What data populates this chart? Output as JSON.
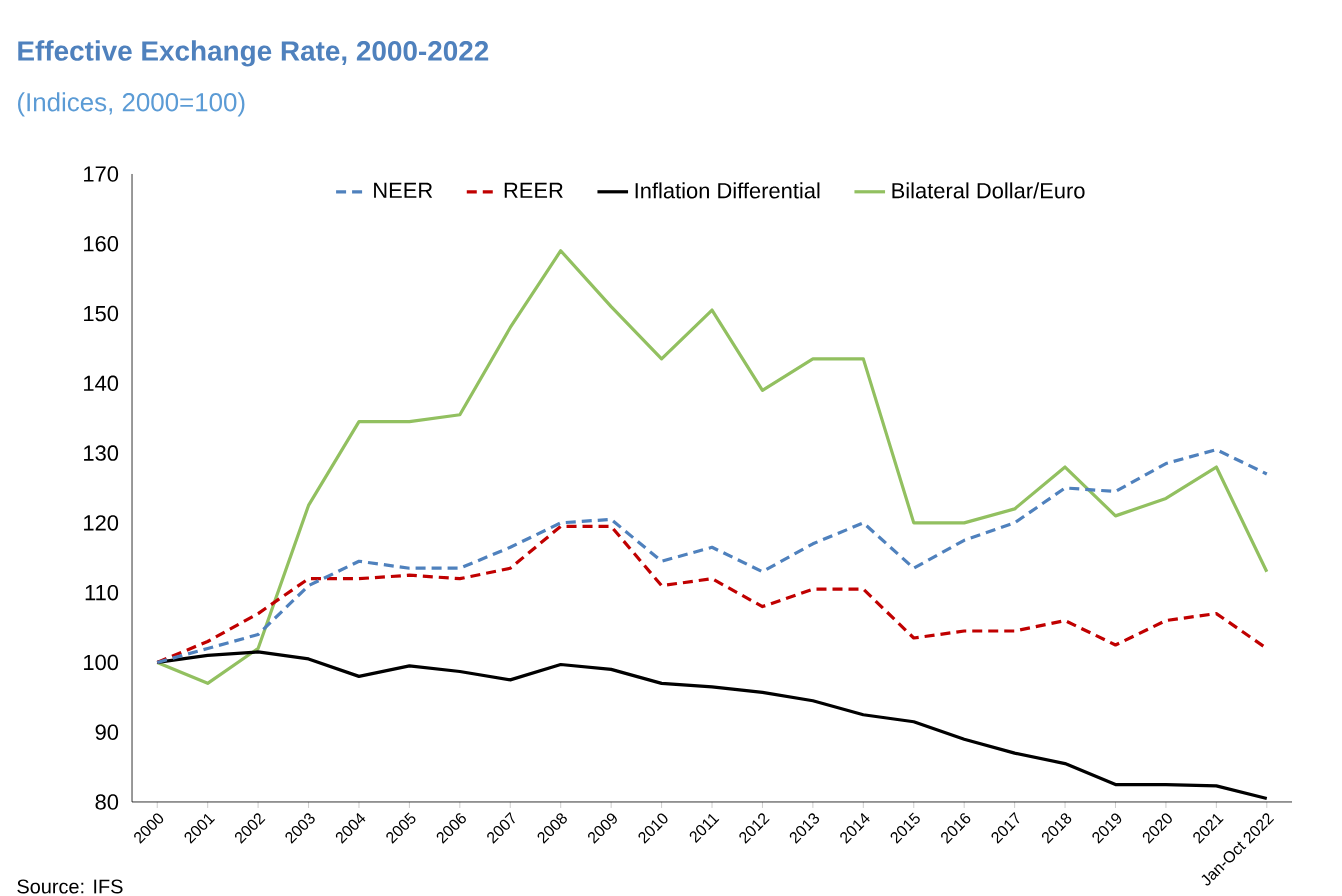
{
  "chart_data": {
    "type": "line",
    "title": "Effective Exchange Rate, 2000-2022",
    "subtitle": "(Indices, 2000=100)",
    "categories": [
      "2000",
      "2001",
      "2002",
      "2003",
      "2004",
      "2005",
      "2006",
      "2007",
      "2008",
      "2009",
      "2010",
      "2011",
      "2012",
      "2013",
      "2014",
      "2015",
      "2016",
      "2017",
      "2018",
      "2019",
      "2020",
      "2021",
      "Jan-Oct 2022"
    ],
    "series": [
      {
        "name": "NEER",
        "color": "#4f81bd",
        "line_style": "dashed",
        "values": [
          100,
          102,
          104,
          111,
          114.5,
          113.5,
          113.5,
          116.5,
          120,
          120.5,
          114.5,
          116.5,
          113,
          117,
          120,
          113.5,
          117.5,
          120,
          125,
          124.5,
          128.5,
          130.5,
          127
        ]
      },
      {
        "name": "REER",
        "color": "#c00000",
        "line_style": "dashed",
        "values": [
          100,
          103,
          107,
          112,
          112,
          112.5,
          112,
          113.5,
          119.5,
          119.5,
          111,
          112,
          108,
          110.5,
          110.5,
          103.5,
          104.5,
          104.5,
          106,
          102.5,
          106,
          107,
          102
        ]
      },
      {
        "name": "Inflation Differential",
        "color": "#000000",
        "line_style": "solid",
        "values": [
          100,
          101,
          101.5,
          100.5,
          98,
          99.5,
          98.7,
          97.5,
          99.7,
          99,
          97,
          96.5,
          95.7,
          94.5,
          92.5,
          91.5,
          89,
          87,
          85.5,
          82.5,
          82.5,
          82.3,
          80.5
        ]
      },
      {
        "name": "Bilateral Dollar/Euro",
        "color": "#92c060",
        "line_style": "solid",
        "values": [
          100,
          97,
          102,
          122.5,
          134.5,
          134.5,
          135.5,
          148,
          159,
          151,
          143.5,
          150.5,
          139,
          143.5,
          143.5,
          120,
          120,
          122,
          128,
          121,
          123.5,
          128,
          113
        ]
      }
    ],
    "ylim": [
      80,
      170
    ],
    "yticks": [
      80,
      90,
      100,
      110,
      120,
      130,
      140,
      150,
      160,
      170
    ],
    "legend": "top",
    "grid": false,
    "marker": "none",
    "annotations": [
      "Source: IFS"
    ]
  }
}
